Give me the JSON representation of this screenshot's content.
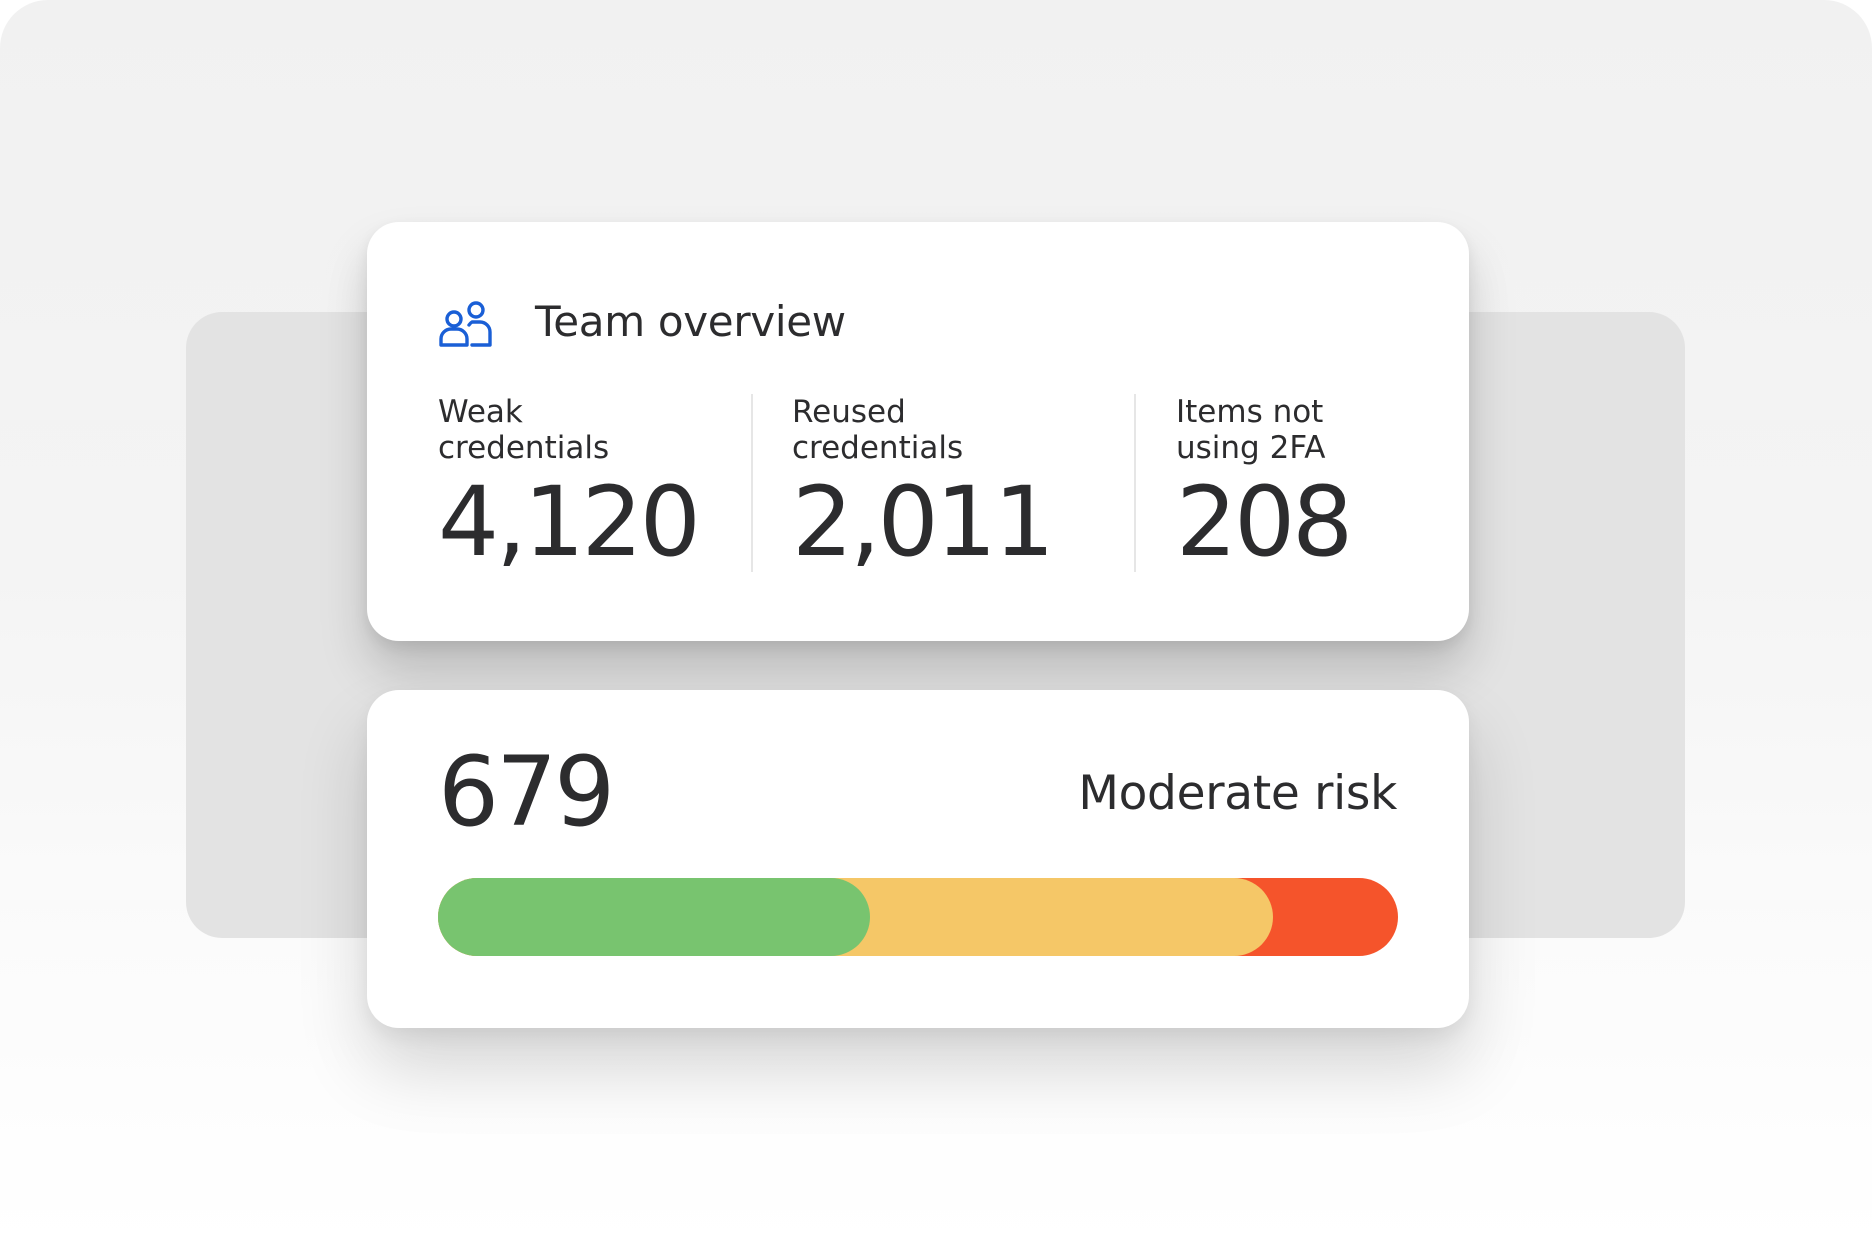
{
  "team_overview": {
    "title": "Team overview",
    "icon": "team-users-icon",
    "icon_color": "#1a5fd6",
    "stats": [
      {
        "label": "Weak credentials",
        "value": "4,120"
      },
      {
        "label": "Reused credentials",
        "value": "2,011"
      },
      {
        "label": "Items not using 2FA",
        "value": "208"
      }
    ]
  },
  "risk": {
    "score": "679",
    "label": "Moderate risk",
    "segments": [
      {
        "name": "low",
        "color": "#78c46f",
        "end_fraction": 0.45
      },
      {
        "name": "moderate",
        "color": "#f5c767",
        "end_fraction": 0.87
      },
      {
        "name": "high",
        "color": "#f5542b",
        "end_fraction": 1.0
      }
    ]
  }
}
